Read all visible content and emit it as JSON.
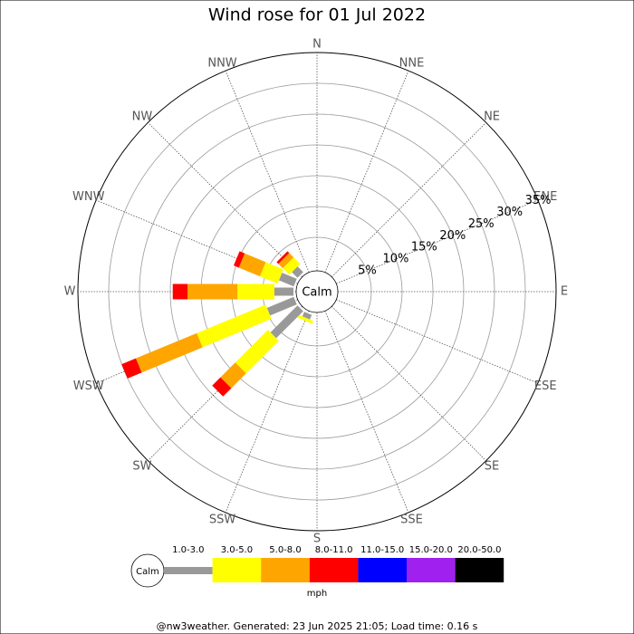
{
  "chart_data": {
    "type": "windrose",
    "title": "Wind rose for 01 Jul 2022",
    "categories": [
      "N",
      "NNE",
      "NE",
      "ENE",
      "E",
      "ESE",
      "SE",
      "SSE",
      "S",
      "SSW",
      "SW",
      "WSW",
      "W",
      "WNW",
      "NW",
      "NNW"
    ],
    "series": [
      {
        "name": "1.0-3.0",
        "color": "#999999",
        "values": [
          0,
          0,
          0,
          0,
          0,
          0,
          0,
          0,
          0,
          0.8,
          6.2,
          4.7,
          3.1,
          2.6,
          1.3,
          0
        ]
      },
      {
        "name": "3.0-5.0",
        "color": "#ffff00",
        "values": [
          0,
          0,
          0,
          0,
          0,
          0,
          0,
          0,
          0,
          0.5,
          7.5,
          12.1,
          6.0,
          3.1,
          1.5,
          0
        ]
      },
      {
        "name": "5.0-8.0",
        "color": "#ffa500",
        "values": [
          0,
          0,
          0,
          0,
          0,
          0,
          0,
          0,
          0,
          0,
          3.4,
          10.7,
          8.1,
          3.7,
          1.0,
          0
        ]
      },
      {
        "name": "8.0-11.0",
        "color": "#ff0000",
        "values": [
          0,
          0,
          0,
          0,
          0,
          0,
          0,
          0,
          0,
          0,
          1.9,
          2.5,
          2.4,
          0.9,
          0.4,
          0
        ]
      },
      {
        "name": "11.0-15.0",
        "color": "#0000ff",
        "values": [
          0,
          0,
          0,
          0,
          0,
          0,
          0,
          0,
          0,
          0,
          0,
          0,
          0,
          0,
          0,
          0
        ]
      },
      {
        "name": "15.0-20.0",
        "color": "#a020f0",
        "values": [
          0,
          0,
          0,
          0,
          0,
          0,
          0,
          0,
          0,
          0,
          0,
          0,
          0,
          0,
          0,
          0
        ]
      },
      {
        "name": "20.0-50.0",
        "color": "#000000",
        "values": [
          0,
          0,
          0,
          0,
          0,
          0,
          0,
          0,
          0,
          0,
          0,
          0,
          0,
          0,
          0,
          0
        ]
      }
    ],
    "rlim": [
      0,
      35
    ],
    "rticks": [
      {
        "value": 5,
        "label": "5%"
      },
      {
        "value": 10,
        "label": "10%"
      },
      {
        "value": 15,
        "label": "15%"
      },
      {
        "value": 20,
        "label": "20%"
      },
      {
        "value": 25,
        "label": "25%"
      },
      {
        "value": 30,
        "label": "30%"
      },
      {
        "value": 35,
        "label": "35%"
      }
    ],
    "calm_label": "Calm",
    "legend_unit": "mph",
    "footer": "@nw3weather. Generated: 23 Jun 2025 21:05; Load time: 0.16 s"
  }
}
